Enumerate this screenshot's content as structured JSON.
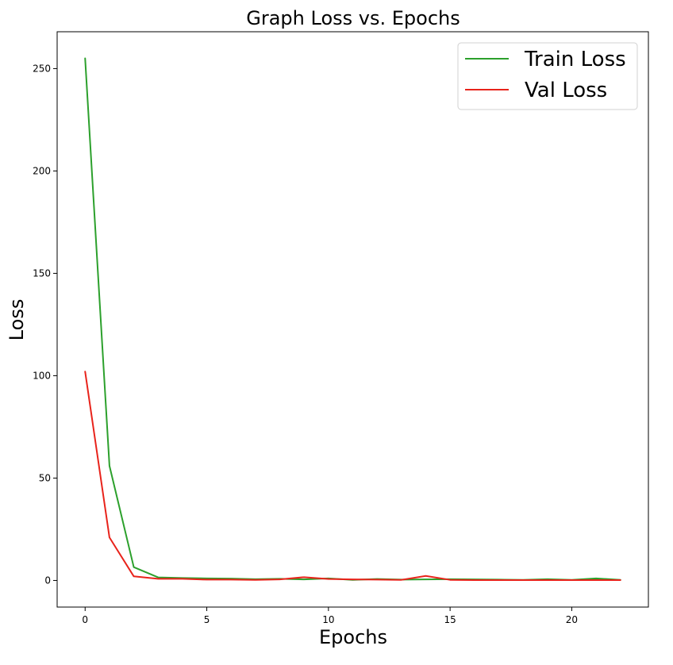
{
  "chart_data": {
    "type": "line",
    "title": "Graph Loss vs. Epochs",
    "xlabel": "Epochs",
    "ylabel": "Loss",
    "xlim": [
      -1.15,
      23.15
    ],
    "ylim": [
      -13,
      268
    ],
    "xticks": [
      0,
      5,
      10,
      15,
      20
    ],
    "yticks": [
      0,
      50,
      100,
      150,
      200,
      250
    ],
    "grid": false,
    "legend_position": "upper-right",
    "x": [
      0,
      1,
      2,
      3,
      4,
      5,
      6,
      7,
      8,
      9,
      10,
      11,
      12,
      13,
      14,
      15,
      16,
      17,
      18,
      19,
      20,
      21,
      22
    ],
    "series": [
      {
        "name": "Train Loss",
        "color": "#2ca02c",
        "values": [
          255,
          56,
          6.5,
          1.5,
          1.2,
          1.0,
          0.9,
          0.6,
          0.8,
          0.5,
          1.0,
          0.3,
          0.7,
          0.4,
          0.5,
          0.6,
          0.5,
          0.4,
          0.3,
          0.6,
          0.3,
          1.0,
          0.3
        ]
      },
      {
        "name": "Val Loss",
        "color": "#e8231b",
        "values": [
          102,
          21,
          2.0,
          0.8,
          0.8,
          0.4,
          0.4,
          0.3,
          0.5,
          1.6,
          0.7,
          0.5,
          0.4,
          0.3,
          2.2,
          0.3,
          0.2,
          0.2,
          0.2,
          0.2,
          0.2,
          0.2,
          0.2
        ]
      }
    ]
  }
}
